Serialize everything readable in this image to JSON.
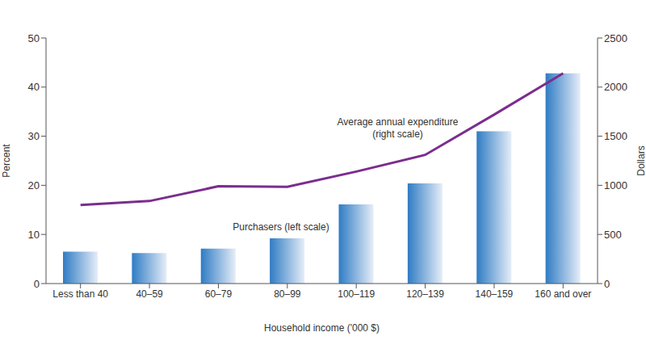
{
  "chart_data": {
    "type": "bar",
    "categories": [
      "Less than 40",
      "40–59",
      "60–79",
      "80–99",
      "100–119",
      "120–139",
      "140–159",
      "160 and over"
    ],
    "xlabel": "Household income ('000 $)",
    "ylabel": "Percent",
    "y2label": "Dollars",
    "ylim": [
      0,
      50
    ],
    "yticks": [
      0,
      10,
      20,
      30,
      40,
      50
    ],
    "y2lim": [
      0,
      2500
    ],
    "y2ticks": [
      0,
      500,
      1000,
      1500,
      2000,
      2500
    ],
    "grid": false,
    "series": [
      {
        "name": "Purchasers (left scale)",
        "type": "bar",
        "color": "#2f7cc4",
        "values": [
          6.5,
          6.2,
          7.1,
          9.2,
          16.1,
          20.4,
          31.0,
          42.8
        ]
      },
      {
        "name": "Average annual expenditure (right scale)",
        "type": "line",
        "axis": "y2",
        "color": "#7b2d8e",
        "values": [
          800,
          840,
          990,
          985,
          1140,
          1310,
          1720,
          2140
        ]
      }
    ]
  }
}
